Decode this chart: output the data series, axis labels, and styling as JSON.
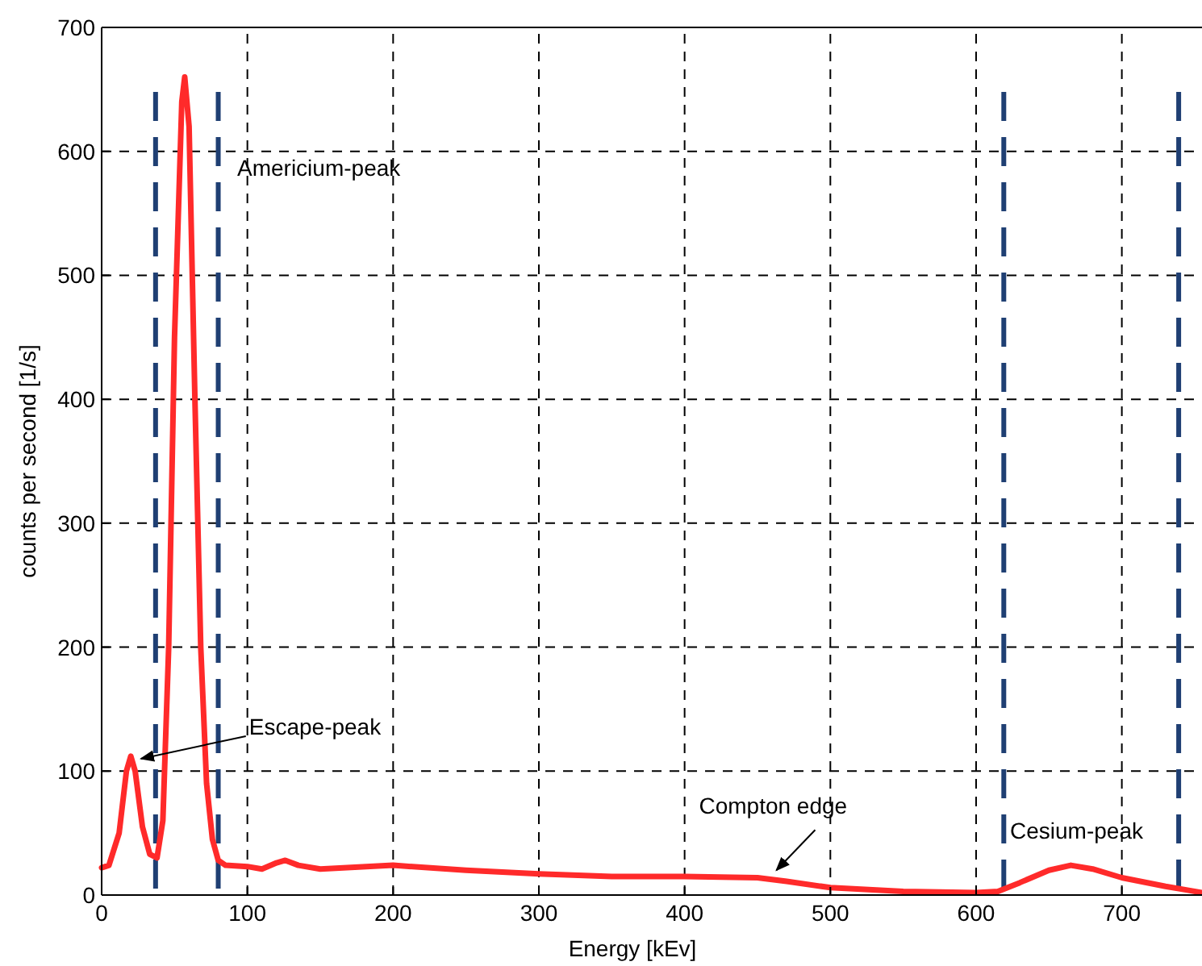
{
  "chart_data": {
    "type": "line",
    "xlabel": "Energy [kEv]",
    "ylabel": "counts per second [1/s]",
    "xlim": [
      0,
      755
    ],
    "ylim": [
      0,
      700
    ],
    "xticks": [
      0,
      100,
      200,
      300,
      400,
      500,
      600,
      700
    ],
    "yticks": [
      0,
      100,
      200,
      300,
      400,
      500,
      600,
      700
    ],
    "grid": true,
    "line_style": "solid",
    "marker": "none",
    "series": [
      {
        "color": "#ff2a2a",
        "x": [
          0,
          5,
          12,
          17,
          20,
          23,
          28,
          33,
          38,
          42,
          46,
          50,
          55,
          57,
          60,
          64,
          68,
          72,
          76,
          80,
          85,
          100,
          110,
          120,
          126,
          135,
          150,
          200,
          250,
          300,
          350,
          400,
          450,
          470,
          500,
          550,
          600,
          615,
          630,
          650,
          665,
          680,
          700,
          730,
          745,
          755
        ],
        "values": [
          22,
          24,
          50,
          100,
          112,
          100,
          55,
          33,
          30,
          60,
          200,
          450,
          640,
          660,
          620,
          400,
          200,
          90,
          45,
          28,
          24,
          23,
          21,
          26,
          28,
          24,
          21,
          24,
          20,
          17,
          15,
          15,
          14,
          11,
          6,
          3,
          2,
          3,
          10,
          20,
          24,
          21,
          14,
          7,
          4,
          2
        ]
      }
    ],
    "ref_lines": [
      {
        "axis": "x",
        "value": 37,
        "color": "#1f3f73",
        "line_style": "dashed"
      },
      {
        "axis": "x",
        "value": 80,
        "color": "#1f3f73",
        "line_style": "dashed"
      },
      {
        "axis": "x",
        "value": 619,
        "color": "#1f3f73",
        "line_style": "dashed"
      },
      {
        "axis": "x",
        "value": 739,
        "color": "#1f3f73",
        "line_style": "dashed"
      }
    ],
    "annotations": [
      "Americium-peak",
      {
        "text": "Escape-peak",
        "x": 27,
        "y": 110
      },
      {
        "text": "Compton edge",
        "x": 463,
        "y": 20
      },
      "Cesium-peak"
    ]
  }
}
